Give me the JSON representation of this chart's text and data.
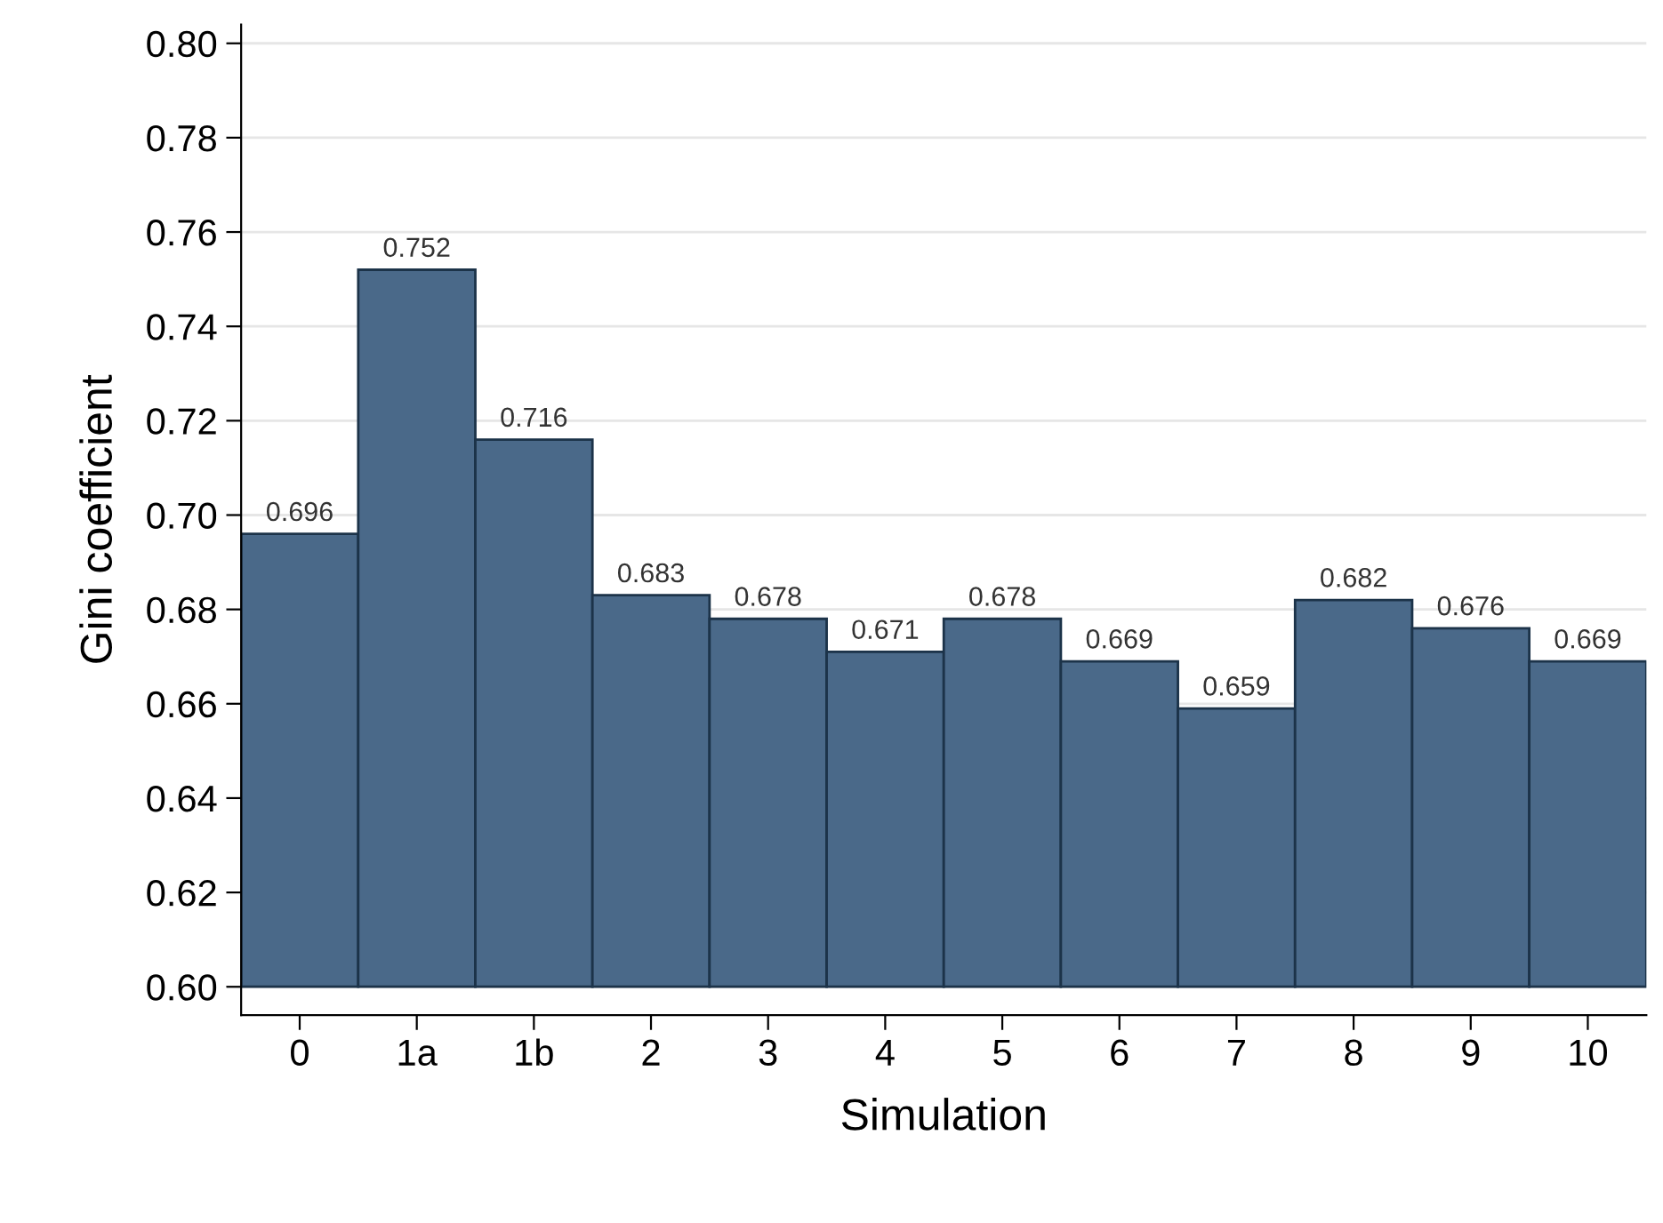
{
  "chart_data": {
    "type": "bar",
    "xlabel": "Simulation",
    "ylabel": "Gini coefficient",
    "categories": [
      "0",
      "1a",
      "1b",
      "2",
      "3",
      "4",
      "5",
      "6",
      "7",
      "8",
      "9",
      "10"
    ],
    "base": [
      0.6,
      0.6,
      0.6,
      0.6,
      0.6,
      0.6,
      0.6,
      0.6,
      0.6,
      0.6,
      0.6,
      0.6
    ],
    "values": [
      0.096,
      0.152,
      0.116,
      0.083,
      0.078,
      0.071,
      0.078,
      0.069,
      0.059,
      0.082,
      0.076,
      0.069
    ],
    "value_labels": [
      "0.696",
      "0.752",
      "0.716",
      "0.683",
      "0.678",
      "0.671",
      "0.678",
      "0.669",
      "0.659",
      "0.682",
      "0.676",
      "0.669"
    ],
    "color": "#4a6989",
    "grid": "y",
    "ylim": [
      0.594,
      0.804
    ],
    "yticks": [
      {
        "value": 0.6,
        "label": "0.60"
      },
      {
        "value": 0.62,
        "label": "0.62"
      },
      {
        "value": 0.64,
        "label": "0.64"
      },
      {
        "value": 0.66,
        "label": "0.66"
      },
      {
        "value": 0.68,
        "label": "0.68"
      },
      {
        "value": 0.7,
        "label": "0.70"
      },
      {
        "value": 0.72,
        "label": "0.72"
      },
      {
        "value": 0.74,
        "label": "0.74"
      },
      {
        "value": 0.76,
        "label": "0.76"
      },
      {
        "value": 0.78,
        "label": "0.78"
      },
      {
        "value": 0.8,
        "label": "0.80"
      }
    ]
  }
}
